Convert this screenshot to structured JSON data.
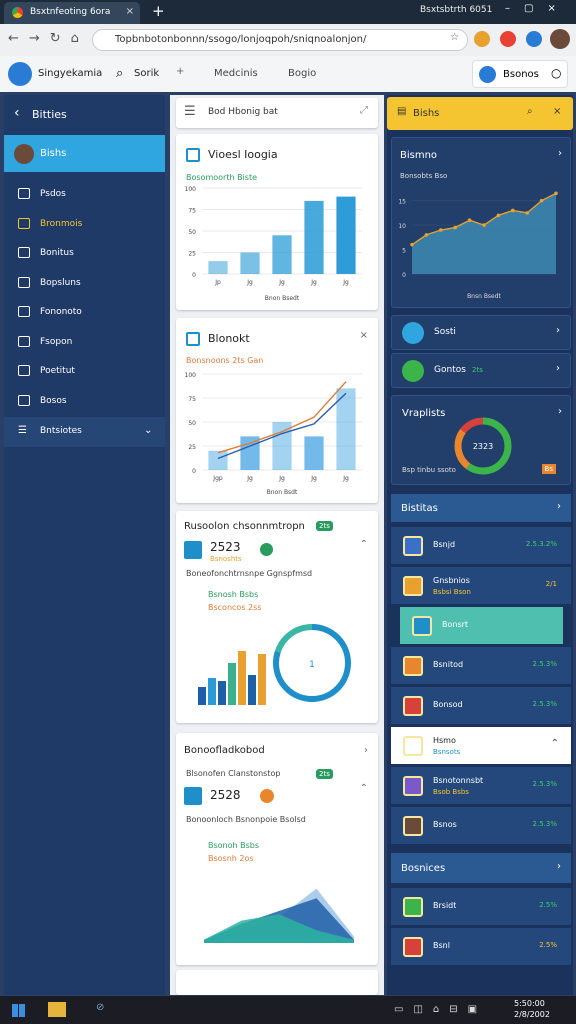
{
  "browser": {
    "tab_title": "Bsxtnfeoting 6ora",
    "status": "Bsxtsbtrth 6051",
    "url": "Topbnbotonbonnn/ssogo/lonjoqpoh/sniqnoalonjon/"
  },
  "app_header": {
    "brand": "Singyekamia",
    "search": "Sorik",
    "links": [
      "Medcinis",
      "Bogio"
    ],
    "account": "Bsonos"
  },
  "sidebar": {
    "title": "Bitties",
    "selected": "Bishs",
    "items": [
      "Psdos",
      "Bronmois",
      "Bonitus",
      "Bopsluns",
      "Fononoto",
      "Fsopon",
      "Poetitut",
      "Bosos"
    ],
    "footer": "Bntsiotes"
  },
  "main": {
    "toolbar": "Bod Hbonig bat",
    "bar_card": {
      "title": "Vioesl Ioogia",
      "subtitle": "Bosomoorth Biste",
      "x_label": "Bnon Bsedt",
      "chart": {
        "type": "bar",
        "categories": [
          "Jp",
          "Jg",
          "Jg",
          "Jg",
          "Jg"
        ],
        "values": [
          15,
          25,
          45,
          85,
          90
        ],
        "color": "#2a9bd6",
        "ylim": [
          0,
          100
        ],
        "yticks": [
          0,
          25,
          50,
          75,
          100
        ]
      }
    },
    "combo_card": {
      "title": "Blonokt",
      "subtitle": "Bonsnoons 2ts Gan",
      "x_label": "Bnon Bsdt",
      "chart": {
        "type": "bar_line",
        "categories": [
          "Jgp",
          "Jg",
          "Jg",
          "Jg",
          "Jg"
        ],
        "values": [
          20,
          35,
          50,
          35,
          85
        ],
        "color": "#5aaee6",
        "lines": [
          {
            "color": "#e07b39",
            "values": [
              18,
              28,
              40,
              55,
              92
            ]
          },
          {
            "color": "#2a5ea8",
            "values": [
              12,
              25,
              38,
              48,
              80
            ]
          }
        ],
        "ylim": [
          0,
          100
        ],
        "yticks": [
          0,
          25,
          50,
          75,
          100
        ]
      }
    },
    "summary_card": {
      "title": "Rusoolon chsonnmtropn",
      "badge": "2ts",
      "number": "2523",
      "number_sub": "Bsnoshts",
      "note": "Boneofonchtrnsnpe Ggnspfmsd",
      "line1": "Bsnosh Bsbs",
      "line2": "Bsconcos 2ss",
      "chart": {
        "type": "bars_donut",
        "values": [
          30,
          45,
          40,
          70,
          90,
          50,
          85
        ],
        "colors": [
          "#1f5fa8",
          "#2a9bd6",
          "#1f5fa8",
          "#3bb08f",
          "#e8a02e",
          "#1f5fa8",
          "#e8a02e"
        ],
        "ylim": [
          0,
          100
        ],
        "donut": {
          "values": [
            80,
            20
          ],
          "colors": [
            "#1e8fc8",
            "#3bb6a4"
          ],
          "center": "1"
        }
      }
    },
    "area_card": {
      "title": "Bonoofladkobod",
      "sub_title": "Blsonofen Clanstonstop",
      "badge": "2ts",
      "number": "2528",
      "note": "Bonoonloch Bsnonpoie Bsolsd",
      "line1": "Bsonoh Bsbs",
      "line2": "Bsosnh 2os",
      "chart": {
        "type": "area",
        "ylim": [
          0,
          100
        ],
        "series": [
          {
            "color": "#9cc3e8",
            "values": [
              5,
              20,
              40,
              85,
              10
            ]
          },
          {
            "color": "#1f5fa8",
            "values": [
              5,
              30,
              50,
              70,
              5
            ]
          },
          {
            "color": "#2bb3a0",
            "values": [
              5,
              35,
              45,
              20,
              5
            ]
          }
        ]
      }
    }
  },
  "right": {
    "header": "Bishs",
    "line_card": {
      "title": "Bismno",
      "legend": "Bonsobts Bso",
      "x_label": "Bnsn Bsedt",
      "chart": {
        "type": "area_line",
        "values": [
          6,
          8,
          9,
          9.5,
          11,
          10,
          12,
          13,
          12.5,
          15,
          16.5
        ],
        "color": "#e8a02e",
        "fill": "#3f8fb6",
        "ylim": [
          0,
          18
        ],
        "yticks": [
          0,
          5,
          10,
          15
        ]
      }
    },
    "links": [
      {
        "label": "Sosti"
      },
      {
        "label": "Gontos",
        "badge": "2ts"
      }
    ],
    "donut_card": {
      "title": "Vraplists",
      "center": "2323",
      "note": "Bsp tinbu ssoto",
      "chip": "Bs",
      "chart": {
        "type": "donut",
        "values": [
          60,
          25,
          15
        ],
        "colors": [
          "#3bb54a",
          "#e8862e",
          "#d8413a"
        ]
      }
    },
    "list_title": "Bistitas",
    "list": [
      {
        "name": "Bsnjd",
        "value": "2.5.3.2%"
      },
      {
        "name": "Gnsbnios",
        "sub": "Bsbsi Bson",
        "value": "2/1"
      },
      {
        "name": "Bonsrt"
      },
      {
        "name": "Bsnitod",
        "value": "2.5.3%"
      },
      {
        "name": "Bonsod",
        "value": "2.5.3%"
      },
      {
        "name": "Hsmo",
        "sub": "Bsnsots"
      },
      {
        "name": "Bsnotonnsbt",
        "sub": "Bsob Bsbs",
        "value": "2.5.3%"
      },
      {
        "name": "Bsnos",
        "value": "2.5.3%"
      }
    ],
    "services_title": "Bosnices",
    "services": [
      {
        "name": "Brsidt",
        "value": "2.5%"
      },
      {
        "name": "Bsnl",
        "value": "2.5%"
      }
    ]
  },
  "taskbar": {
    "time": "5:50:00",
    "date": "2/8/2002"
  }
}
